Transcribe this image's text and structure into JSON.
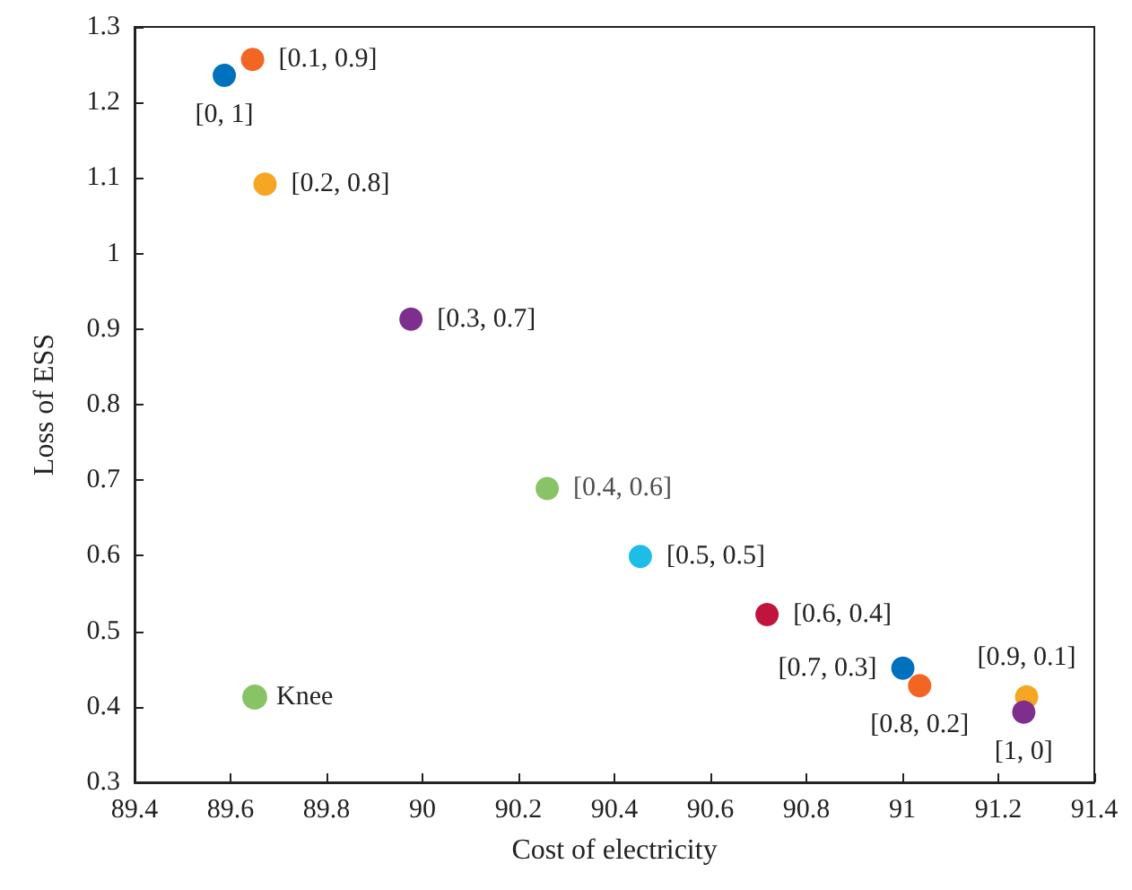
{
  "chart_data": {
    "type": "scatter",
    "xlabel": "Cost of electricity",
    "ylabel": "Loss of ESS",
    "xlim": [
      89.4,
      91.4
    ],
    "xticks": [
      89.4,
      89.6,
      89.8,
      90,
      90.2,
      90.4,
      90.6,
      90.8,
      91,
      91.2,
      91.4
    ],
    "ylim": [
      0.3,
      1.3
    ],
    "yticks": [
      0.3,
      0.4,
      0.5,
      0.6,
      0.7,
      0.8,
      0.9,
      1,
      1.1,
      1.2,
      1.3
    ],
    "grid": false,
    "legend": "bottom left",
    "marker": "circle",
    "series": [
      {
        "x": [
          89.587,
          89.646,
          89.672,
          89.976,
          90.454,
          90.718,
          91.001,
          91.036,
          91.259,
          91.253
        ],
        "values": [
          1.236,
          1.257,
          1.092,
          0.913,
          0.599,
          0.522,
          0.451,
          0.428,
          0.413,
          0.393
        ],
        "colors": [
          "#0072bd",
          "#f26522",
          "#f5a623",
          "#7e2f8e",
          "#1ebde8",
          "#c0143c",
          "#0072bd",
          "#f26522",
          "#f5a623",
          "#7e2f8e"
        ]
      },
      {
        "name": "Knee",
        "color": "#6ab43e",
        "x": [
          90.26
        ],
        "values": [
          0.689
        ]
      }
    ],
    "annotations": [
      {
        "text": "[0, 1]",
        "x": 89.587,
        "y": 1.236
      },
      {
        "text": "[0.1, 0.9]",
        "x": 89.646,
        "y": 1.257
      },
      {
        "text": "[0.2, 0.8]",
        "x": 89.672,
        "y": 1.092
      },
      {
        "text": "[0.3, 0.7]",
        "x": 89.976,
        "y": 0.913
      },
      {
        "text": "[0.4, 0.6]",
        "x": 90.26,
        "y": 0.689
      },
      {
        "text": "[0.5, 0.5]",
        "x": 90.454,
        "y": 0.599
      },
      {
        "text": "[0.6, 0.4]",
        "x": 90.718,
        "y": 0.522
      },
      {
        "text": "[0.7, 0.3]",
        "x": 91.001,
        "y": 0.451
      },
      {
        "text": "[0.8, 0.2]",
        "x": 91.036,
        "y": 0.428
      },
      {
        "text": "[0.9, 0.1]",
        "x": 91.259,
        "y": 0.413
      },
      {
        "text": "[1, 0]",
        "x": 91.253,
        "y": 0.393
      }
    ]
  }
}
